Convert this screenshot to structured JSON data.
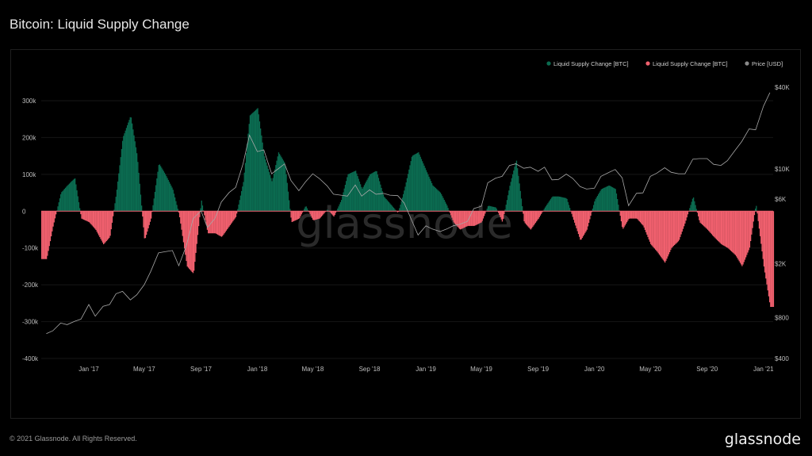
{
  "title": "Bitcoin: Liquid Supply Change",
  "footer": {
    "copyright": "© 2021 Glassnode. All Rights Reserved.",
    "logo": "glassnode"
  },
  "watermark": "glassnode",
  "colors": {
    "background": "#000000",
    "positive": "#0b6b50",
    "negative": "#f0606e",
    "price": "#a8a8a8",
    "grid": "#161616"
  },
  "chart_data": {
    "type": "bar",
    "title": "Bitcoin: Liquid Supply Change",
    "grid": true,
    "legend_position": "top-right",
    "legend": [
      {
        "label": "Liquid Supply Change [BTC]",
        "color": "#0b6b50"
      },
      {
        "label": "Liquid Supply Change [BTC]",
        "color": "#f0606e"
      },
      {
        "label": "Price [USD]",
        "color": "#8a8a8a"
      }
    ],
    "x_range": [
      "2016-09-20",
      "2021-01-22"
    ],
    "x_ticks": [
      {
        "date": "2017-01-01",
        "label": "Jan '17"
      },
      {
        "date": "2017-05-01",
        "label": "May '17"
      },
      {
        "date": "2017-09-01",
        "label": "Sep '17"
      },
      {
        "date": "2018-01-01",
        "label": "Jan '18"
      },
      {
        "date": "2018-05-01",
        "label": "May '18"
      },
      {
        "date": "2018-09-01",
        "label": "Sep '18"
      },
      {
        "date": "2019-01-01",
        "label": "Jan '19"
      },
      {
        "date": "2019-05-01",
        "label": "May '19"
      },
      {
        "date": "2019-09-01",
        "label": "Sep '19"
      },
      {
        "date": "2020-01-01",
        "label": "Jan '20"
      },
      {
        "date": "2020-05-01",
        "label": "May '20"
      },
      {
        "date": "2020-09-01",
        "label": "Sep '20"
      },
      {
        "date": "2021-01-01",
        "label": "Jan '21"
      }
    ],
    "y_left": {
      "range": [
        -400000,
        300000
      ],
      "ticks": [
        {
          "value": 300000,
          "label": "300k"
        },
        {
          "value": 200000,
          "label": "200k"
        },
        {
          "value": 100000,
          "label": "100k"
        },
        {
          "value": 0,
          "label": "0"
        },
        {
          "value": -100000,
          "label": "-100k"
        },
        {
          "value": -200000,
          "label": "-200k"
        },
        {
          "value": -300000,
          "label": "-300k"
        },
        {
          "value": -400000,
          "label": "-400k"
        }
      ]
    },
    "y_right": {
      "scale": "log",
      "range": [
        400,
        40000
      ],
      "ticks": [
        {
          "value": 40000,
          "label": "$40K"
        },
        {
          "value": 10000,
          "label": "$10K"
        },
        {
          "value": 6000,
          "label": "$6K"
        },
        {
          "value": 2000,
          "label": "$2K"
        },
        {
          "value": 800,
          "label": "$800"
        },
        {
          "value": 400,
          "label": "$400"
        }
      ]
    },
    "dates": [
      "2016-10-01",
      "2016-10-15",
      "2016-11-01",
      "2016-11-15",
      "2016-12-01",
      "2016-12-15",
      "2017-01-01",
      "2017-01-15",
      "2017-02-01",
      "2017-02-15",
      "2017-03-01",
      "2017-03-15",
      "2017-04-01",
      "2017-04-15",
      "2017-05-01",
      "2017-05-15",
      "2017-06-01",
      "2017-06-15",
      "2017-07-01",
      "2017-07-15",
      "2017-08-01",
      "2017-08-15",
      "2017-09-01",
      "2017-09-15",
      "2017-10-01",
      "2017-10-15",
      "2017-11-01",
      "2017-11-15",
      "2017-12-01",
      "2017-12-15",
      "2018-01-01",
      "2018-01-15",
      "2018-02-01",
      "2018-02-15",
      "2018-03-01",
      "2018-03-15",
      "2018-04-01",
      "2018-04-15",
      "2018-05-01",
      "2018-05-15",
      "2018-06-01",
      "2018-06-15",
      "2018-07-01",
      "2018-07-15",
      "2018-08-01",
      "2018-08-15",
      "2018-09-01",
      "2018-09-15",
      "2018-10-01",
      "2018-10-15",
      "2018-11-01",
      "2018-11-15",
      "2018-12-01",
      "2018-12-15",
      "2019-01-01",
      "2019-01-15",
      "2019-02-01",
      "2019-02-15",
      "2019-03-01",
      "2019-03-15",
      "2019-04-01",
      "2019-04-15",
      "2019-05-01",
      "2019-05-15",
      "2019-06-01",
      "2019-06-15",
      "2019-07-01",
      "2019-07-15",
      "2019-08-01",
      "2019-08-15",
      "2019-09-01",
      "2019-09-15",
      "2019-10-01",
      "2019-10-15",
      "2019-11-01",
      "2019-11-15",
      "2019-12-01",
      "2019-12-15",
      "2020-01-01",
      "2020-01-15",
      "2020-02-01",
      "2020-02-15",
      "2020-03-01",
      "2020-03-15",
      "2020-04-01",
      "2020-04-15",
      "2020-05-01",
      "2020-05-15",
      "2020-06-01",
      "2020-06-15",
      "2020-07-01",
      "2020-07-15",
      "2020-08-01",
      "2020-08-15",
      "2020-09-01",
      "2020-09-15",
      "2020-10-01",
      "2020-10-15",
      "2020-11-01",
      "2020-11-15",
      "2020-12-01",
      "2020-12-15",
      "2021-01-01",
      "2021-01-15"
    ],
    "series": [
      {
        "name": "Liquid Supply Change [BTC]",
        "values": [
          -130000,
          -40000,
          50000,
          70000,
          90000,
          -20000,
          -30000,
          -50000,
          -90000,
          -70000,
          50000,
          200000,
          260000,
          150000,
          -80000,
          -20000,
          130000,
          100000,
          60000,
          -10000,
          -150000,
          -170000,
          30000,
          -60000,
          -60000,
          -70000,
          -40000,
          -15000,
          80000,
          260000,
          280000,
          150000,
          80000,
          160000,
          130000,
          -30000,
          -20000,
          15000,
          -25000,
          -20000,
          5000,
          -15000,
          30000,
          100000,
          110000,
          60000,
          100000,
          110000,
          40000,
          20000,
          -5000,
          60000,
          150000,
          160000,
          110000,
          70000,
          50000,
          15000,
          -30000,
          -50000,
          -40000,
          -40000,
          -30000,
          15000,
          10000,
          -30000,
          70000,
          140000,
          -30000,
          -50000,
          -20000,
          10000,
          40000,
          40000,
          35000,
          -20000,
          -80000,
          -50000,
          30000,
          60000,
          70000,
          60000,
          -50000,
          -20000,
          -20000,
          -40000,
          -90000,
          -110000,
          -140000,
          -100000,
          -80000,
          -30000,
          40000,
          -30000,
          -50000,
          -70000,
          -90000,
          -100000,
          -120000,
          -150000,
          -100000,
          20000,
          -150000,
          -260000
        ]
      },
      {
        "name": "Price [USD]",
        "values": [
          610,
          640,
          730,
          710,
          750,
          780,
          1000,
          820,
          970,
          1000,
          1200,
          1250,
          1080,
          1180,
          1400,
          1750,
          2400,
          2450,
          2500,
          1930,
          2750,
          4300,
          4900,
          3700,
          4300,
          5700,
          6700,
          7300,
          10900,
          17700,
          13400,
          13800,
          9200,
          10000,
          10900,
          8200,
          6900,
          8000,
          9200,
          8500,
          7500,
          6500,
          6400,
          6300,
          7600,
          6300,
          7000,
          6500,
          6600,
          6400,
          6350,
          5600,
          4200,
          3250,
          3800,
          3600,
          3450,
          3600,
          3800,
          3900,
          4100,
          5100,
          5300,
          7900,
          8550,
          8800,
          10600,
          10900,
          10100,
          10300,
          9600,
          10300,
          8300,
          8350,
          9150,
          8500,
          7400,
          7100,
          7200,
          8800,
          9400,
          9900,
          8600,
          5350,
          6600,
          6650,
          8800,
          9300,
          10200,
          9450,
          9200,
          9200,
          11800,
          11900,
          11900,
          10800,
          10600,
          11500,
          13750,
          15900,
          19700,
          19400,
          29000,
          36500
        ]
      }
    ]
  }
}
